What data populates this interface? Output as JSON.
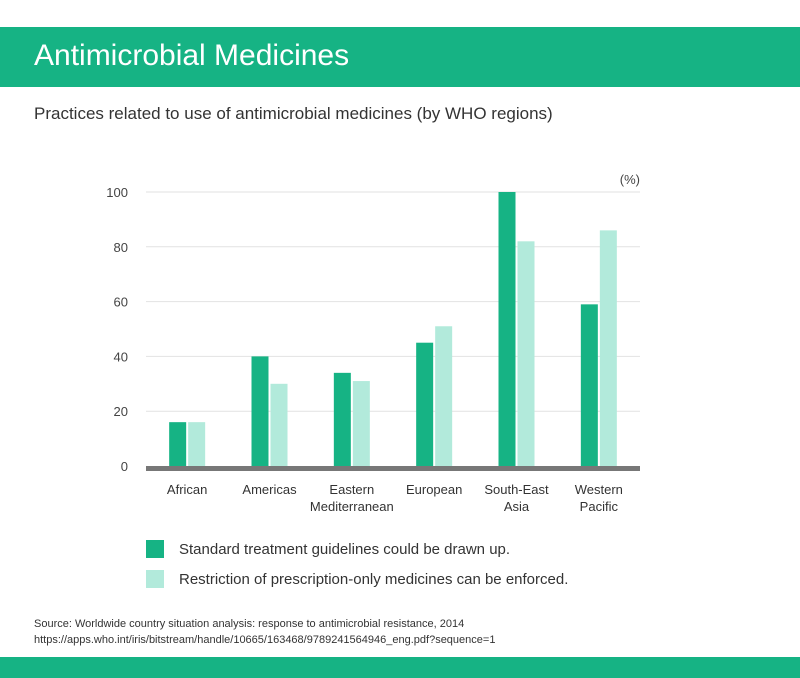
{
  "header": {
    "title": "Antimicrobial Medicines"
  },
  "subtitle": "Practices related to use of antimicrobial medicines (by WHO regions)",
  "colors": {
    "brand": "#16b384",
    "series1": "#16b384",
    "series2": "#b2eadb",
    "baseline": "#777777",
    "grid": "#e2e2e2"
  },
  "chart_data": {
    "type": "bar",
    "unit_label": "(%)",
    "categories": [
      [
        "African"
      ],
      [
        "Americas"
      ],
      [
        "Eastern",
        "Mediterranean"
      ],
      [
        "European"
      ],
      [
        "South-East",
        "Asia"
      ],
      [
        "Western",
        "Pacific"
      ]
    ],
    "series": [
      {
        "name": "Standard treatment guidelines could be drawn up.",
        "values": [
          16,
          40,
          34,
          45,
          100,
          59
        ]
      },
      {
        "name": "Restriction of prescription-only medicines can be enforced.",
        "values": [
          16,
          30,
          31,
          51,
          82,
          86
        ]
      }
    ],
    "ylim": [
      0,
      100
    ],
    "yticks": [
      0,
      20,
      40,
      60,
      80,
      100
    ],
    "grid": true,
    "legend_position": "bottom"
  },
  "source": {
    "line1": "Source: Worldwide country situation analysis: response to antimicrobial resistance, 2014",
    "line2": "https://apps.who.int/iris/bitstream/handle/10665/163468/9789241564946_eng.pdf?sequence=1"
  }
}
